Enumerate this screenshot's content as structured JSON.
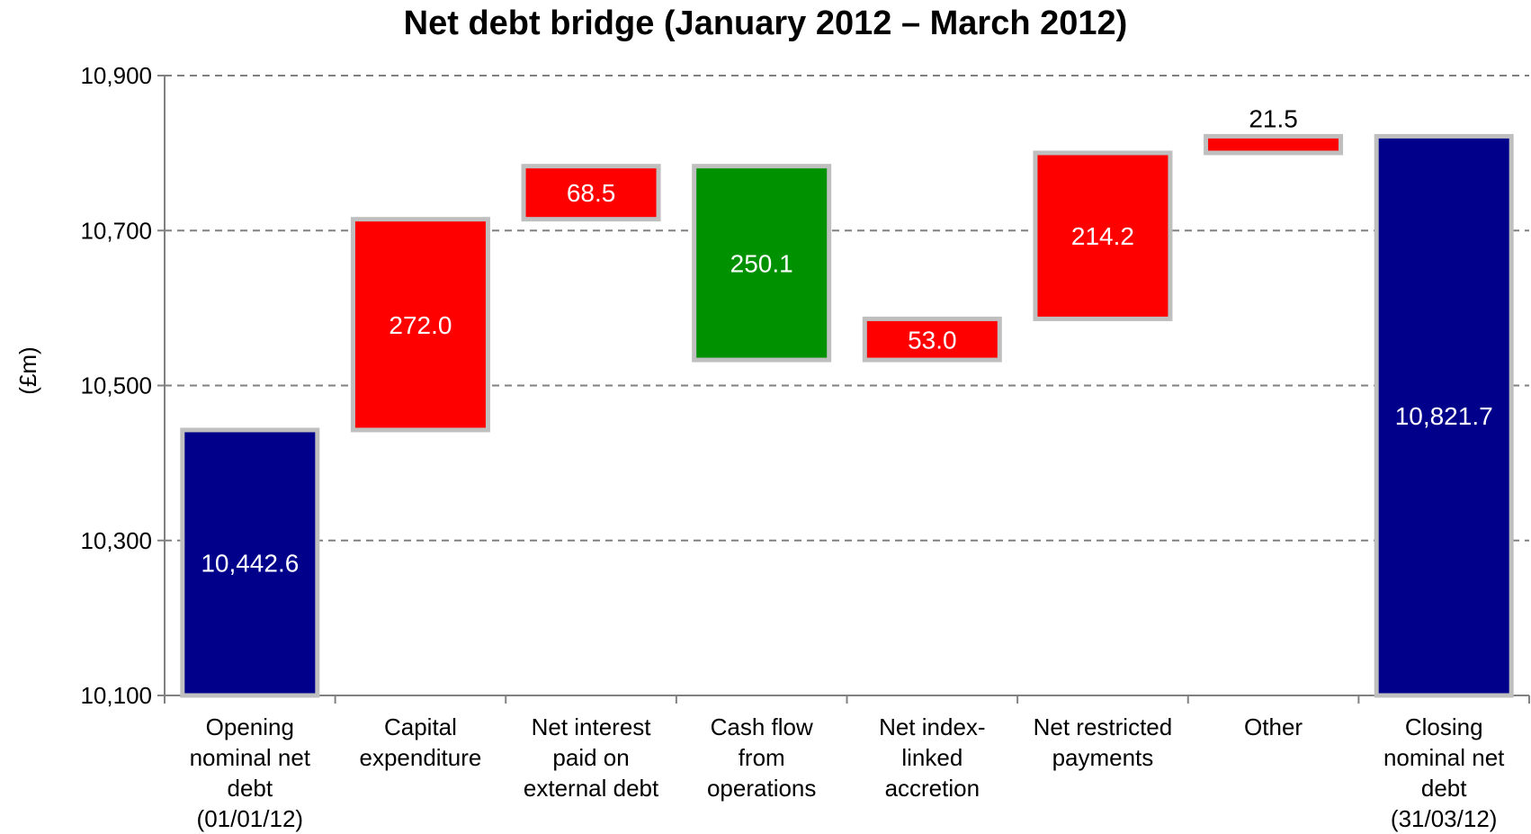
{
  "chart_data": {
    "type": "waterfall",
    "title": "Net debt bridge (January 2012 – March 2012)",
    "ylabel": "(£m)",
    "xlabel": "",
    "ylim": [
      10100,
      10900
    ],
    "yticks": [
      10100,
      10300,
      10500,
      10700,
      10900
    ],
    "ytick_labels": [
      "10,100",
      "10,300",
      "10,500",
      "10,700",
      "10,900"
    ],
    "grid": "horizontal dashed",
    "categories": [
      [
        "Opening",
        "nominal net",
        "debt",
        "(01/01/12)"
      ],
      [
        "Capital",
        "expenditure"
      ],
      [
        "Net interest",
        "paid on",
        "external debt"
      ],
      [
        "Cash flow",
        "from",
        "operations"
      ],
      [
        "Net index-",
        "linked",
        "accretion"
      ],
      [
        "Net restricted",
        "payments"
      ],
      [
        "Other"
      ],
      [
        "Closing",
        "nominal net",
        "debt",
        "(31/03/12)"
      ]
    ],
    "bars": [
      {
        "kind": "total",
        "start": 10100,
        "end": 10442.6,
        "label": "10,442.6",
        "label_position": "inside",
        "color": "#00008B"
      },
      {
        "kind": "increase",
        "start": 10442.6,
        "end": 10714.6,
        "label": "272.0",
        "label_position": "inside",
        "color": "#FF0000"
      },
      {
        "kind": "increase",
        "start": 10714.6,
        "end": 10783.1,
        "label": "68.5",
        "label_position": "inside",
        "color": "#FF0000"
      },
      {
        "kind": "decrease",
        "start": 10783.1,
        "end": 10533.0,
        "label": "250.1",
        "label_position": "inside",
        "color": "#009100"
      },
      {
        "kind": "increase",
        "start": 10533.0,
        "end": 10586.0,
        "label": "53.0",
        "label_position": "inside",
        "color": "#FF0000"
      },
      {
        "kind": "increase",
        "start": 10586.0,
        "end": 10800.2,
        "label": "214.2",
        "label_position": "inside",
        "color": "#FF0000"
      },
      {
        "kind": "increase",
        "start": 10800.2,
        "end": 10821.7,
        "label": "21.5",
        "label_position": "above",
        "color": "#FF0000"
      },
      {
        "kind": "total",
        "start": 10100,
        "end": 10821.7,
        "label": "10,821.7",
        "label_position": "inside",
        "color": "#00008B"
      }
    ],
    "colors": {
      "increase": "#FF0000",
      "decrease": "#009100",
      "total": "#00008B",
      "bar_border": "#BFBFBF",
      "gridline": "#808080"
    }
  }
}
